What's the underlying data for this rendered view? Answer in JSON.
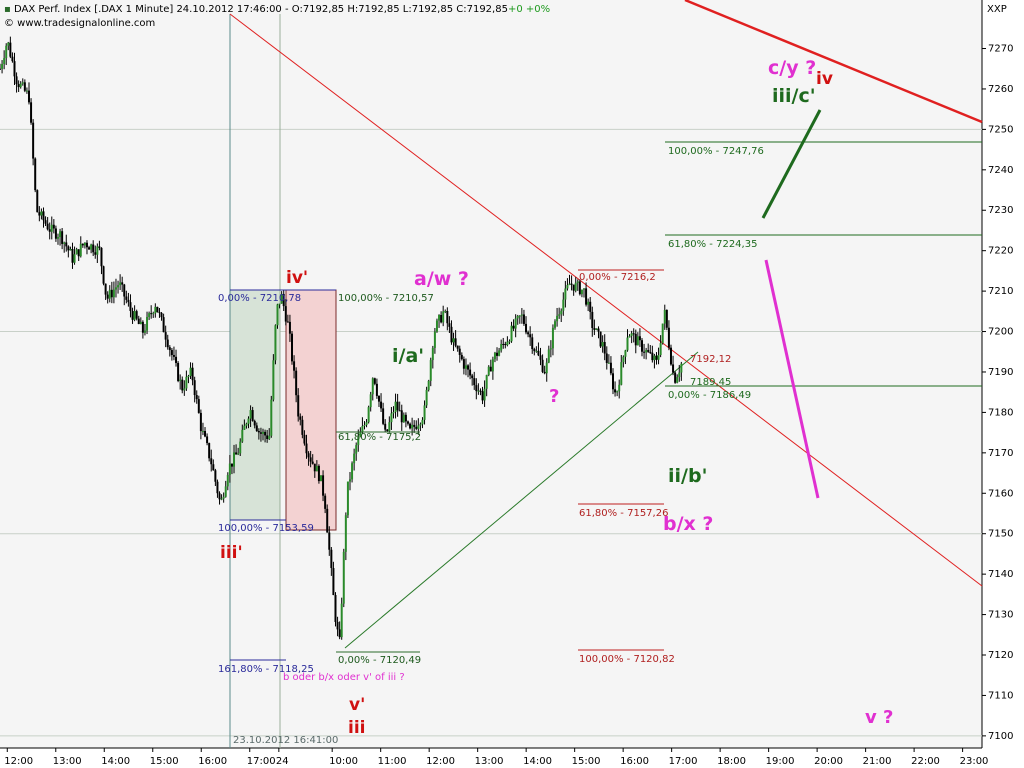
{
  "header": {
    "title": "DAX Perf. Index [.DAX  1 Minute] 24.10.2012 17:46:00 - O:7192,85 H:7192,85 L:7192,85 C:7192,85",
    "change": "+0 +0%",
    "watermark": "© www.tradesignalonline.com",
    "axis_label": "XXP"
  },
  "chart_data": {
    "type": "candlestick",
    "ylim": [
      7097,
      7282
    ],
    "y_ticks": [
      7100,
      7110,
      7120,
      7130,
      7140,
      7150,
      7160,
      7170,
      7180,
      7190,
      7200,
      7210,
      7220,
      7230,
      7240,
      7250,
      7260,
      7270
    ],
    "x_ticks": [
      {
        "t": 0,
        "label": "12:00"
      },
      {
        "t": 1,
        "label": "13:00"
      },
      {
        "t": 2,
        "label": "14:00"
      },
      {
        "t": 3,
        "label": "15:00"
      },
      {
        "t": 4,
        "label": "16:00"
      },
      {
        "t": 5,
        "label": "17:00"
      },
      {
        "t": 5.6,
        "label": "24"
      },
      {
        "t": 6.7,
        "label": "10:00"
      },
      {
        "t": 7.7,
        "label": "11:00"
      },
      {
        "t": 8.7,
        "label": "12:00"
      },
      {
        "t": 9.7,
        "label": "13:00"
      },
      {
        "t": 10.7,
        "label": "14:00"
      },
      {
        "t": 11.7,
        "label": "15:00"
      },
      {
        "t": 12.7,
        "label": "16:00"
      },
      {
        "t": 13.7,
        "label": "17:00"
      },
      {
        "t": 14.7,
        "label": "18:00"
      },
      {
        "t": 15.7,
        "label": "19:00"
      },
      {
        "t": 16.7,
        "label": "20:00"
      },
      {
        "t": 17.7,
        "label": "21:00"
      },
      {
        "t": 18.7,
        "label": "22:00"
      },
      {
        "t": 19.7,
        "label": "23:00"
      }
    ],
    "xlim": [
      -0.15,
      20.1
    ],
    "price_path": [
      [
        -0.15,
        7265
      ],
      [
        0.0,
        7272
      ],
      [
        0.2,
        7262
      ],
      [
        0.45,
        7258
      ],
      [
        0.6,
        7230
      ],
      [
        0.9,
        7225
      ],
      [
        1.1,
        7224
      ],
      [
        1.35,
        7218
      ],
      [
        1.6,
        7222
      ],
      [
        1.9,
        7220
      ],
      [
        2.05,
        7208
      ],
      [
        2.3,
        7212
      ],
      [
        2.55,
        7205
      ],
      [
        2.8,
        7200
      ],
      [
        3.05,
        7207
      ],
      [
        3.3,
        7198
      ],
      [
        3.6,
        7186
      ],
      [
        3.8,
        7190
      ],
      [
        4.0,
        7176
      ],
      [
        4.2,
        7168
      ],
      [
        4.4,
        7157
      ],
      [
        4.55,
        7166
      ],
      [
        4.75,
        7170
      ],
      [
        5.0,
        7181
      ],
      [
        5.2,
        7175
      ],
      [
        5.4,
        7174
      ],
      [
        5.55,
        7205
      ],
      [
        5.65,
        7209
      ],
      [
        5.8,
        7201
      ],
      [
        6.0,
        7180
      ],
      [
        6.2,
        7170
      ],
      [
        6.45,
        7164
      ],
      [
        6.55,
        7158
      ],
      [
        6.75,
        7131
      ],
      [
        6.85,
        7122
      ],
      [
        7.0,
        7160
      ],
      [
        7.2,
        7172
      ],
      [
        7.4,
        7178
      ],
      [
        7.55,
        7190
      ],
      [
        7.8,
        7174
      ],
      [
        8.0,
        7182
      ],
      [
        8.3,
        7175
      ],
      [
        8.6,
        7180
      ],
      [
        8.8,
        7200
      ],
      [
        9.0,
        7205
      ],
      [
        9.2,
        7197
      ],
      [
        9.5,
        7190
      ],
      [
        9.8,
        7184
      ],
      [
        10.0,
        7193
      ],
      [
        10.3,
        7198
      ],
      [
        10.6,
        7204
      ],
      [
        10.9,
        7195
      ],
      [
        11.1,
        7190
      ],
      [
        11.3,
        7203
      ],
      [
        11.6,
        7212
      ],
      [
        11.9,
        7210
      ],
      [
        12.05,
        7202
      ],
      [
        12.3,
        7196
      ],
      [
        12.55,
        7184
      ],
      [
        12.8,
        7200
      ],
      [
        13.1,
        7196
      ],
      [
        13.4,
        7192
      ],
      [
        13.55,
        7205
      ],
      [
        13.75,
        7188
      ],
      [
        13.9,
        7192
      ]
    ],
    "annotations": {
      "box_left_top": "0,00% - 7210,78",
      "box_left_bottom": "100,00% - 7153,59",
      "box_left_ext": "161,80% - 7118,25",
      "box_right_top": "100,00% - 7210,57",
      "box_right_mid": "61,80% - 7175,2",
      "box_right_base": "0,00% - 7120,49",
      "date_label": "23.10.2012 16:41:00",
      "fib_red_top": "0,00% - 7216,2",
      "fib_red_618": "61,80% - 7157,26",
      "fib_red_100": "100,00% - 7120,82",
      "fib_green_100": "100,00% - 7247,76",
      "fib_green_618": "61,80% - 7224,35",
      "fib_green_0": "0,00% - 7186,49",
      "price_current": "7192,12",
      "price_low": "7189,45",
      "note_bx": "b oder b/x oder v' of iii ?"
    },
    "wave_labels": {
      "iv_prime": "iv'",
      "iii_prime": "iii'",
      "a_w": "a/w ?",
      "i_a": "i/a'",
      "q1": "?",
      "ii_b": "ii/b'",
      "b_x": "b/x ?",
      "c_y": "c/y ?",
      "iv": "iv",
      "iii_c": "iii/c'",
      "v_prime": "v'",
      "iii": "iii",
      "v_q": "v ?"
    }
  }
}
